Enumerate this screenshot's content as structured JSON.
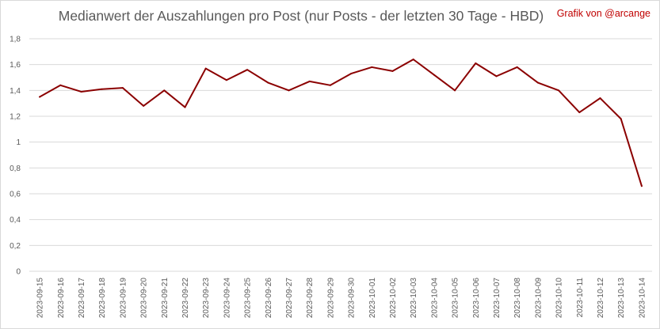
{
  "chart_data": {
    "type": "line",
    "title": "Medianwert der Auszahlungen pro Post (nur Posts - der letzten 30 Tage - HBD)",
    "credit": "Grafik von @arcange",
    "xlabel": "",
    "ylabel": "",
    "ylim": [
      0,
      1.8
    ],
    "yticks": [
      "0",
      "0,2",
      "0,4",
      "0,6",
      "0,8",
      "1",
      "1,2",
      "1,4",
      "1,6",
      "1,8"
    ],
    "grid": true,
    "categories": [
      "2023-09-15",
      "2023-09-16",
      "2023-09-17",
      "2023-09-18",
      "2023-09-19",
      "2023-09-20",
      "2023-09-21",
      "2023-09-22",
      "2023-09-23",
      "2023-09-24",
      "2023-09-25",
      "2023-09-26",
      "2023-09-27",
      "2023-09-28",
      "2023-09-29",
      "2023-09-30",
      "2023-10-01",
      "2023-10-02",
      "2023-10-03",
      "2023-10-04",
      "2023-10-05",
      "2023-10-06",
      "2023-10-07",
      "2023-10-08",
      "2023-10-09",
      "2023-10-10",
      "2023-10-11",
      "2023-10-12",
      "2023-10-13",
      "2023-10-14"
    ],
    "series": [
      {
        "color": "#8b0000",
        "values": [
          1.35,
          1.44,
          1.39,
          1.41,
          1.42,
          1.28,
          1.4,
          1.27,
          1.57,
          1.48,
          1.56,
          1.46,
          1.4,
          1.47,
          1.44,
          1.53,
          1.58,
          1.55,
          1.64,
          1.52,
          1.4,
          1.61,
          1.51,
          1.58,
          1.46,
          1.4,
          1.23,
          1.34,
          1.18,
          0.66
        ]
      }
    ]
  }
}
